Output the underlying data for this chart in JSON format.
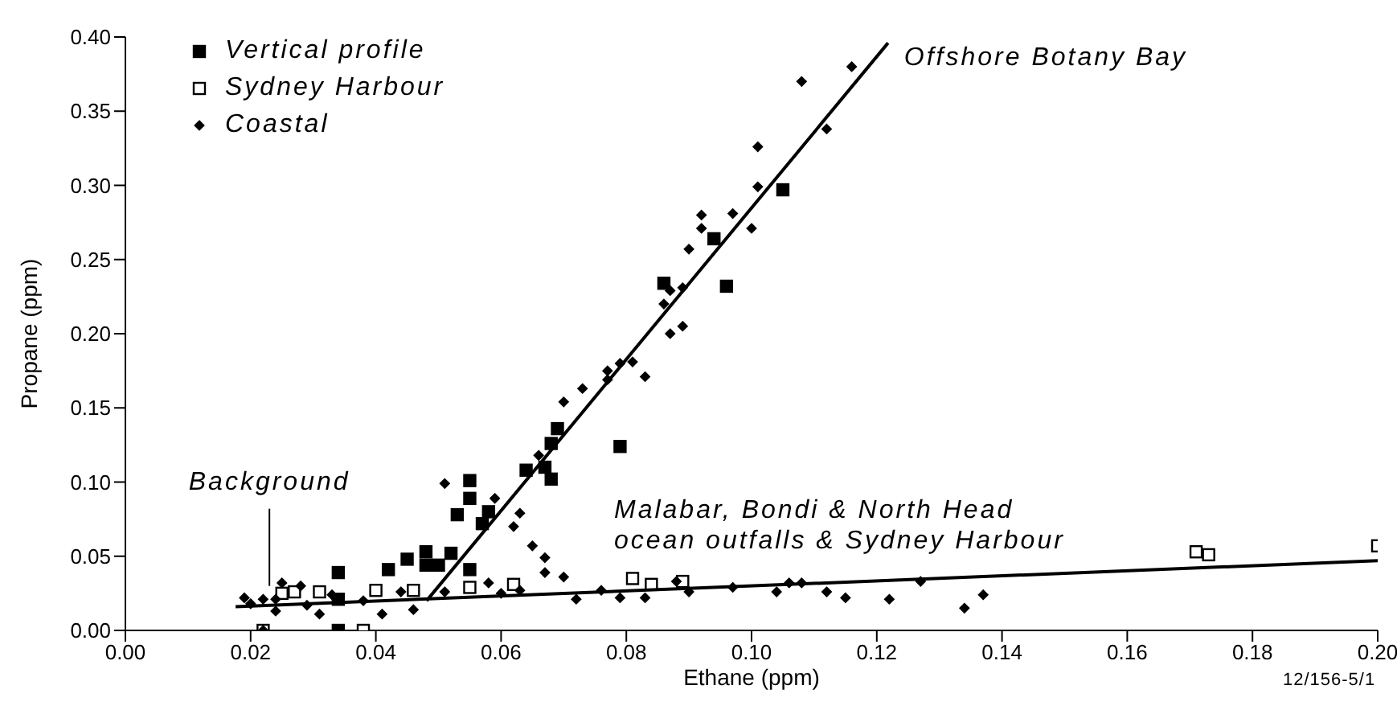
{
  "chart_data": {
    "type": "scatter",
    "xlabel": "Ethane (ppm)",
    "ylabel": "Propane (ppm)",
    "xlim": [
      0,
      0.2
    ],
    "ylim": [
      0,
      0.4
    ],
    "xticks": [
      {
        "value": 0,
        "label": "0.00"
      },
      {
        "value": 0.02,
        "label": "0.02"
      },
      {
        "value": 0.04,
        "label": "0.04"
      },
      {
        "value": 0.06,
        "label": "0.06"
      },
      {
        "value": 0.08,
        "label": "0.08"
      },
      {
        "value": 0.1,
        "label": "0.10"
      },
      {
        "value": 0.12,
        "label": "0.12"
      },
      {
        "value": 0.14,
        "label": "0.14"
      },
      {
        "value": 0.16,
        "label": "0.16"
      },
      {
        "value": 0.18,
        "label": "0.18"
      },
      {
        "value": 0.2,
        "label": "0.20"
      }
    ],
    "yticks": [
      {
        "value": 0,
        "label": "0.00"
      },
      {
        "value": 0.05,
        "label": "0.05"
      },
      {
        "value": 0.1,
        "label": "0.10"
      },
      {
        "value": 0.15,
        "label": "0.15"
      },
      {
        "value": 0.2,
        "label": "0.20"
      },
      {
        "value": 0.25,
        "label": "0.25"
      },
      {
        "value": 0.3,
        "label": "0.30"
      },
      {
        "value": 0.35,
        "label": "0.35"
      },
      {
        "value": 0.4,
        "label": "0.40"
      }
    ],
    "grid": false,
    "legend": "top left",
    "series": [
      {
        "name": "Vertical profile",
        "type": "scatter",
        "marker": "square",
        "color": "#000000",
        "x": [
          0.034,
          0.034,
          0.034,
          0.042,
          0.045,
          0.048,
          0.048,
          0.05,
          0.052,
          0.055,
          0.055,
          0.055,
          0.053,
          0.058,
          0.057,
          0.064,
          0.067,
          0.068,
          0.068,
          0.069,
          0.079,
          0.086,
          0.094,
          0.096,
          0.105
        ],
        "values": [
          0,
          0.021,
          0.039,
          0.041,
          0.048,
          0.053,
          0.044,
          0.044,
          0.052,
          0.041,
          0.089,
          0.101,
          0.078,
          0.08,
          0.072,
          0.108,
          0.11,
          0.102,
          0.126,
          0.136,
          0.124,
          0.234,
          0.264,
          0.232,
          0.297
        ]
      },
      {
        "name": "Sydney Harbour",
        "type": "scatter",
        "marker": "square",
        "color": "#ffffff",
        "x": [
          0.022,
          0.038,
          0.031,
          0.027,
          0.025,
          0.046,
          0.04,
          0.062,
          0.055,
          0.081,
          0.084,
          0.089,
          0.171,
          0.173,
          0.2
        ],
        "values": [
          0,
          0,
          0.026,
          0.026,
          0.025,
          0.027,
          0.027,
          0.031,
          0.029,
          0.035,
          0.031,
          0.033,
          0.053,
          0.051,
          0.057
        ]
      },
      {
        "name": "Coastal",
        "type": "scatter",
        "marker": "diamond",
        "color": "#000000",
        "x": [
          0.022,
          0.025,
          0.024,
          0.022,
          0.02,
          0.024,
          0.031,
          0.041,
          0.046,
          0.038,
          0.044,
          0.051,
          0.058,
          0.063,
          0.06,
          0.076,
          0.028,
          0.019,
          0.029,
          0.033,
          0.063,
          0.062,
          0.065,
          0.067,
          0.067,
          0.07,
          0.072,
          0.059,
          0.051,
          0.066,
          0.07,
          0.073,
          0.077,
          0.079,
          0.077,
          0.081,
          0.083,
          0.087,
          0.089,
          0.086,
          0.087,
          0.089,
          0.09,
          0.092,
          0.092,
          0.097,
          0.1,
          0.101,
          0.101,
          0.112,
          0.108,
          0.116,
          0.079,
          0.083,
          0.088,
          0.09,
          0.097,
          0.104,
          0.106,
          0.108,
          0.112,
          0.115,
          0.122,
          0.127,
          0.134,
          0.137
        ],
        "values": [
          0,
          0.032,
          0.021,
          0.021,
          0.018,
          0.013,
          0.011,
          0.011,
          0.014,
          0.02,
          0.026,
          0.026,
          0.032,
          0.027,
          0.025,
          0.027,
          0.03,
          0.022,
          0.017,
          0.024,
          0.079,
          0.07,
          0.057,
          0.049,
          0.039,
          0.036,
          0.021,
          0.089,
          0.099,
          0.118,
          0.154,
          0.163,
          0.175,
          0.18,
          0.169,
          0.181,
          0.171,
          0.2,
          0.205,
          0.22,
          0.229,
          0.231,
          0.257,
          0.28,
          0.271,
          0.281,
          0.271,
          0.299,
          0.326,
          0.338,
          0.37,
          0.38,
          0.022,
          0.022,
          0.033,
          0.026,
          0.029,
          0.026,
          0.032,
          0.032,
          0.026,
          0.022,
          0.021,
          0.033,
          0.015,
          0.024
        ]
      },
      {
        "type": "line",
        "marker": "none",
        "color": "#000000",
        "x": [
          0.0481,
          0.1218
        ],
        "values": [
          0.02,
          0.396
        ]
      },
      {
        "type": "line",
        "marker": "none",
        "color": "#000000",
        "x": [
          0.0176,
          0.2
        ],
        "values": [
          0.016,
          0.047
        ]
      }
    ],
    "annotations": [
      {
        "text": "Offshore Botany Bay",
        "x": 0.1218,
        "y": 0.396
      },
      {
        "text": "Background",
        "x": 0.023,
        "y": 0.03
      },
      "Malabar, Bondi & North Head\nocean outfalls & Sydney Harbour",
      "12/156-5/1"
    ]
  }
}
